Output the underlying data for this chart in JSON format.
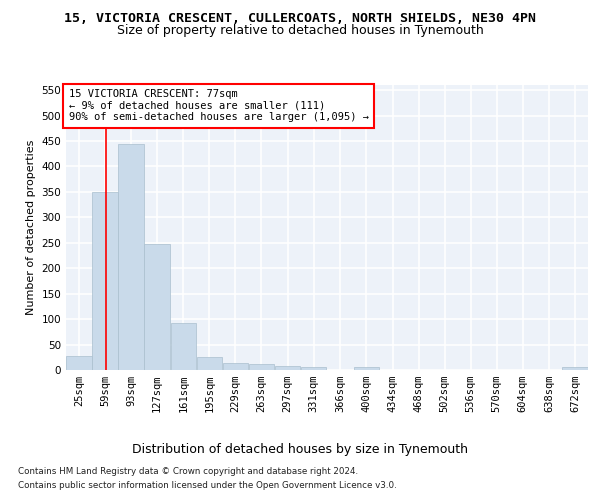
{
  "title": "15, VICTORIA CRESCENT, CULLERCOATS, NORTH SHIELDS, NE30 4PN",
  "subtitle": "Size of property relative to detached houses in Tynemouth",
  "xlabel": "Distribution of detached houses by size in Tynemouth",
  "ylabel": "Number of detached properties",
  "bar_color": "#c9daea",
  "bar_edge_color": "#aabfce",
  "background_color": "#edf2f9",
  "grid_color": "#ffffff",
  "red_line_x": 77,
  "bin_edges": [
    25,
    59,
    93,
    127,
    161,
    195,
    229,
    263,
    297,
    331,
    366,
    400,
    434,
    468,
    502,
    536,
    570,
    604,
    638,
    672,
    706
  ],
  "bar_heights": [
    27,
    350,
    445,
    248,
    93,
    25,
    14,
    11,
    7,
    6,
    0,
    5,
    0,
    0,
    0,
    0,
    0,
    0,
    0,
    5
  ],
  "ylim": [
    0,
    560
  ],
  "yticks": [
    0,
    50,
    100,
    150,
    200,
    250,
    300,
    350,
    400,
    450,
    500,
    550
  ],
  "annotation_text": "15 VICTORIA CRESCENT: 77sqm\n← 9% of detached houses are smaller (111)\n90% of semi-detached houses are larger (1,095) →",
  "footnote1": "Contains HM Land Registry data © Crown copyright and database right 2024.",
  "footnote2": "Contains public sector information licensed under the Open Government Licence v3.0.",
  "title_fontsize": 9.5,
  "subtitle_fontsize": 9,
  "xlabel_fontsize": 9,
  "ylabel_fontsize": 8,
  "tick_fontsize": 7.5,
  "annot_fontsize": 7.5
}
